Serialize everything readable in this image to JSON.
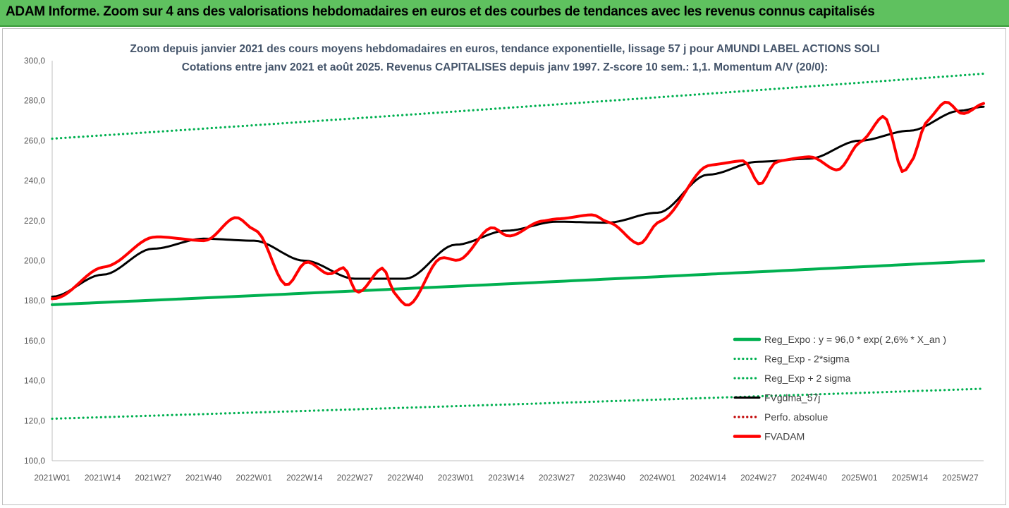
{
  "header": {
    "title": "ADAM Informe. Zoom sur 4 ans des valorisations hebdomadaires en euros et des courbes de tendances avec les revenus connus capitalisés"
  },
  "colors": {
    "header_bg": "#5fc15f",
    "reg_green": "#00b050",
    "fvgdma": "#000000",
    "fvadam": "#ff0000",
    "perfo": "#c00000"
  },
  "chart_data": {
    "type": "line",
    "title_line1": "Zoom depuis janvier 2021 des cours moyens hebdomadaires en euros, tendance exponentielle, lissage 57 j pour AMUNDI LABEL ACTIONS SOLI",
    "title_line2": "Cotations entre janv 2021 et août 2025. Revenus CAPITALISES depuis janv 1997. Z-score 10 sem.: 1,1. Momentum A/V (20/0):",
    "ylim": [
      100,
      300
    ],
    "yticks": [
      "100,0",
      "120,0",
      "140,0",
      "160,0",
      "180,0",
      "200,0",
      "220,0",
      "240,0",
      "260,0",
      "280,0",
      "300,0"
    ],
    "x_tick_labels": [
      "2021W01",
      "2021W14",
      "2021W27",
      "2021W40",
      "2022W01",
      "2022W14",
      "2022W27",
      "2022W40",
      "2023W01",
      "2023W14",
      "2023W27",
      "2023W40",
      "2024W01",
      "2024W14",
      "2024W27",
      "2024W40",
      "2025W01",
      "2025W14",
      "2025W27"
    ],
    "week_count": 241,
    "legend_position": "bottom-right",
    "series": [
      {
        "name": "Reg_Expo : y = 96,0 * exp( 2,6% *  X_an )",
        "style": "solid",
        "color": "#00b050",
        "x": [
          0,
          240
        ],
        "y": [
          178,
          200
        ]
      },
      {
        "name": "Reg_Exp - 2*sigma",
        "style": "dotted",
        "color": "#00b050",
        "x": [
          0,
          240
        ],
        "y": [
          121,
          136
        ]
      },
      {
        "name": "Reg_Exp + 2 sigma",
        "style": "dotted",
        "color": "#00b050",
        "x": [
          0,
          240
        ],
        "y": [
          261,
          293.5
        ]
      },
      {
        "name": "FVgdma_57j",
        "style": "solid",
        "color": "#000000",
        "x": [
          0,
          13,
          26,
          39,
          52,
          65,
          78,
          91,
          104,
          117,
          130,
          143,
          156,
          169,
          182,
          195,
          208,
          221,
          234,
          240
        ],
        "y": [
          182,
          193,
          206,
          211,
          210,
          200,
          191,
          191,
          208,
          215,
          219.5,
          219,
          224,
          243,
          249.5,
          251,
          260,
          265,
          275,
          277
        ]
      },
      {
        "name": "Perfo. absolue",
        "style": "dotted",
        "color": "#c00000",
        "x": [],
        "y": []
      },
      {
        "name": "FVADAM",
        "style": "solid-thick",
        "color": "#ff0000",
        "x": [
          0,
          13,
          26,
          39,
          47,
          52,
          60,
          65,
          71,
          75,
          78,
          85,
          88,
          91,
          100,
          104,
          113,
          117,
          126,
          130,
          139,
          143,
          151,
          156,
          169,
          178,
          182,
          186,
          195,
          202,
          208,
          214,
          219,
          221,
          225,
          230,
          234,
          240
        ],
        "y": [
          181,
          197,
          212,
          210,
          222,
          215,
          187,
          200,
          193,
          197,
          183,
          197,
          182,
          177,
          202,
          200,
          217,
          212,
          220,
          221,
          223,
          219,
          208,
          220,
          248,
          250,
          237,
          250,
          252,
          245,
          260,
          273,
          242,
          250,
          271,
          280,
          273,
          279
        ]
      }
    ]
  }
}
